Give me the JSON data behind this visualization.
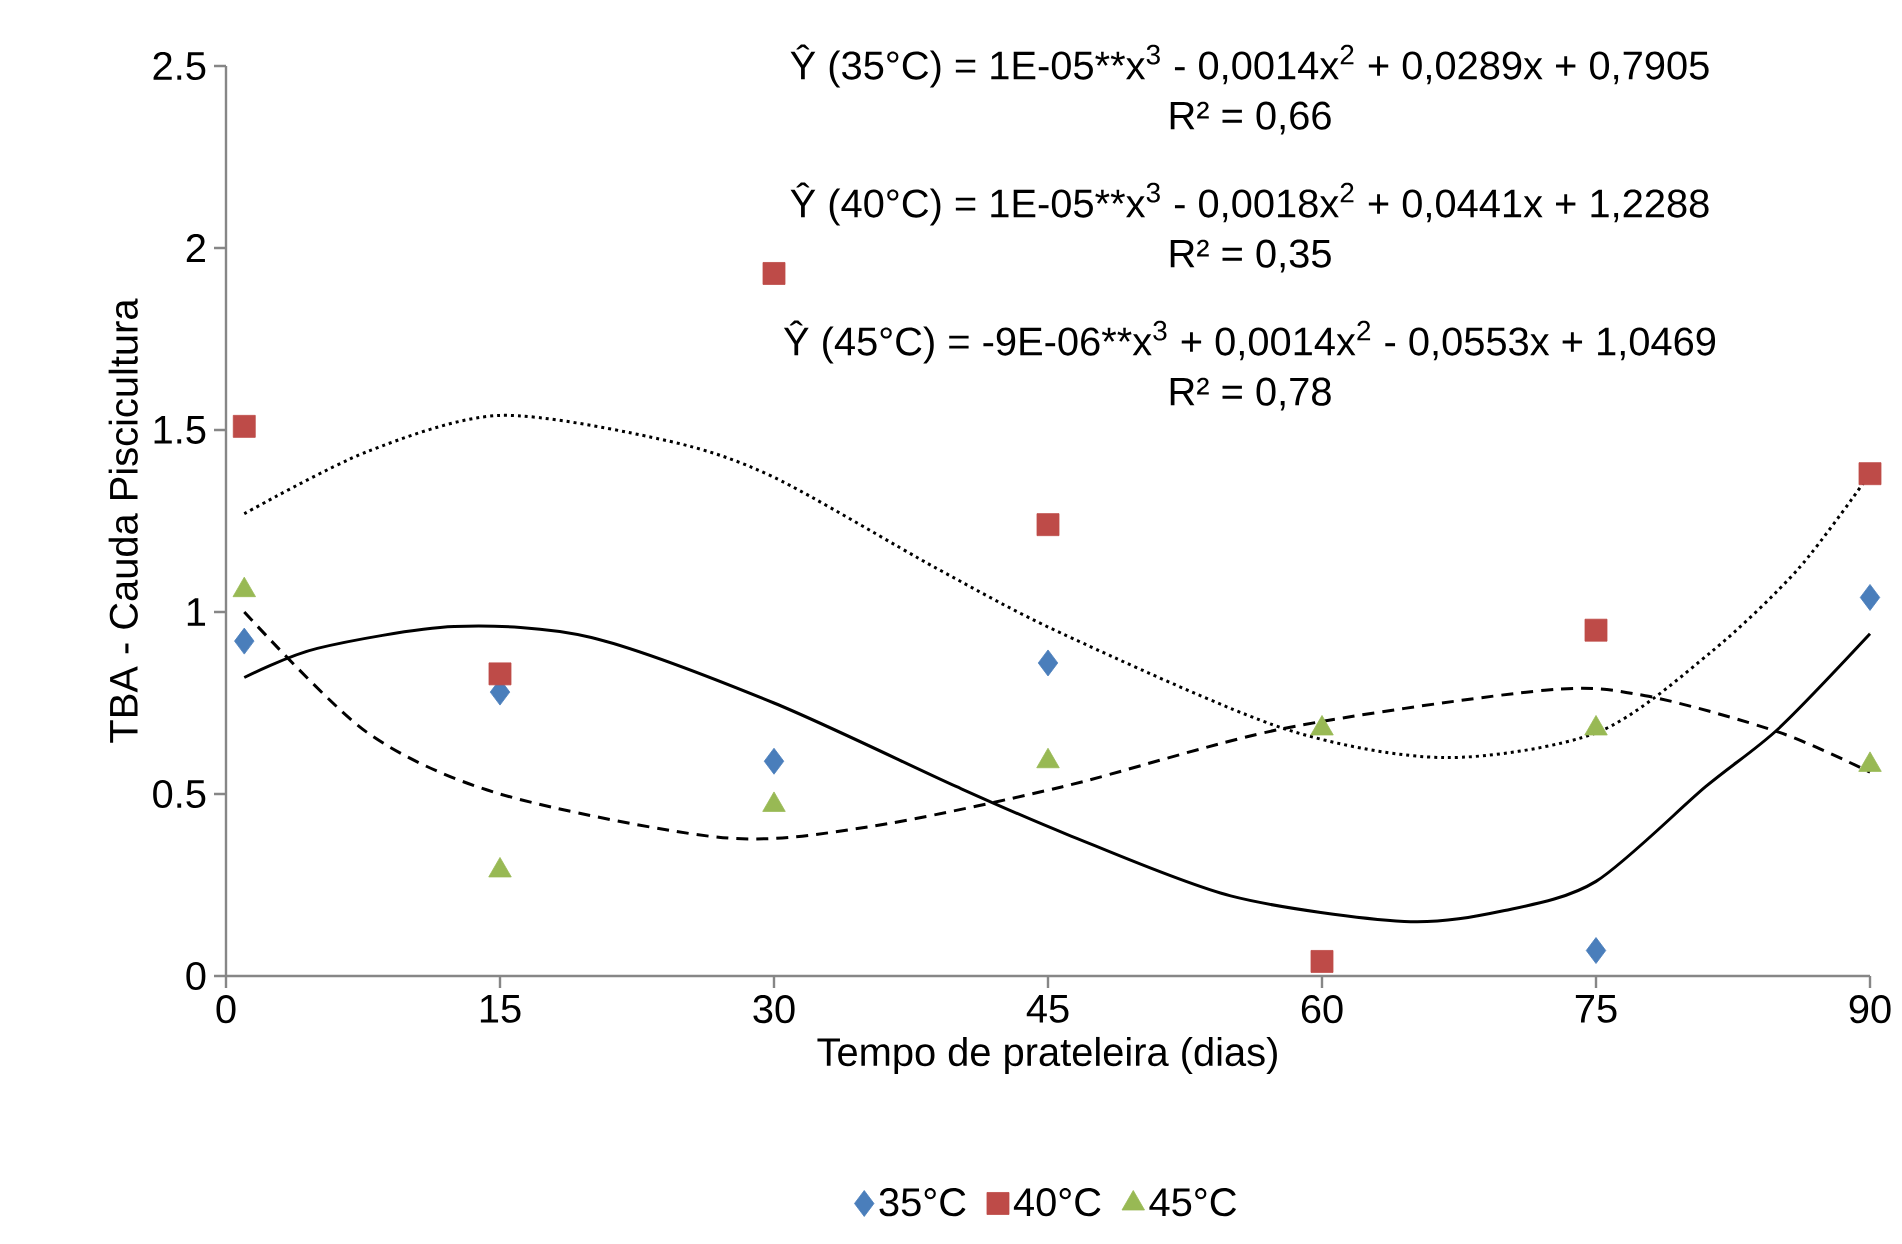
{
  "chart_data": {
    "type": "scatter",
    "xlabel": "Tempo de prateleira (dias)",
    "ylabel": "TBA - Cauda Piscicultura",
    "xlim": [
      0,
      90
    ],
    "xticks": [
      0,
      15,
      30,
      45,
      60,
      75,
      90
    ],
    "ylim": [
      0,
      2.5
    ],
    "yticks": [
      0,
      0.5,
      1,
      1.5,
      2,
      2.5
    ],
    "legend": "bottom",
    "annotations": [
      "Ŷ (35°C) = 1E-05**x$^{3}$ - 0,0014x$^{2}$ + 0,0289x + 0,7905",
      "R² = 0,66",
      "Ŷ (40°C) = 1E-05**x$^{3}$ - 0,0018x$^{2}$ + 0,0441x + 1,2288",
      "R² = 0,35",
      "Ŷ (45°C) = -9E-06**x$^{3}$ + 0,0014x$^{2}$ - 0,0553x + 1,0469",
      "R² = 0,78"
    ],
    "series": [
      {
        "name": "35°C",
        "marker": "diamond",
        "color": "#4a7ebb",
        "x": [
          1,
          15,
          30,
          45,
          60,
          75,
          90
        ],
        "values": [
          0.92,
          0.78,
          0.59,
          0.86,
          null,
          0.07,
          1.04
        ]
      },
      {
        "name": "40°C",
        "marker": "square",
        "color": "#be4b48",
        "x": [
          1,
          15,
          30,
          45,
          60,
          75,
          90
        ],
        "values": [
          1.51,
          0.83,
          1.93,
          1.24,
          0.04,
          0.95,
          1.38
        ]
      },
      {
        "name": "45°C",
        "marker": "triangle",
        "color": "#98b954",
        "x": [
          1,
          15,
          30,
          45,
          60,
          75,
          90
        ],
        "values": [
          1.06,
          0.29,
          0.47,
          0.59,
          0.68,
          0.68,
          0.58
        ]
      },
      {
        "type": "line",
        "line_style": "solid",
        "color": "#000000",
        "x": [
          1,
          5,
          12.5,
          20,
          30,
          40,
          46,
          55,
          64.5,
          70,
          75,
          81,
          85,
          90
        ],
        "values": [
          0.82,
          0.9,
          0.96,
          0.93,
          0.75,
          0.52,
          0.39,
          0.22,
          0.15,
          0.18,
          0.26,
          0.52,
          0.68,
          0.94
        ]
      },
      {
        "type": "line",
        "line_style": "dotted",
        "color": "#000000",
        "x": [
          1,
          7.7,
          15,
          24.2,
          30,
          38.9,
          45.8,
          57.9,
          66.7,
          75.1,
          81.3,
          86.1,
          90
        ],
        "values": [
          1.27,
          1.44,
          1.54,
          1.47,
          1.37,
          1.12,
          0.94,
          0.68,
          0.6,
          0.67,
          0.89,
          1.12,
          1.38
        ]
      },
      {
        "type": "line",
        "line_style": "dashed",
        "color": "#000000",
        "x": [
          1,
          7.7,
          15,
          27.2,
          35.2,
          45.8,
          57.9,
          72.2,
          77.7,
          85,
          90
        ],
        "values": [
          1.0,
          0.67,
          0.5,
          0.38,
          0.41,
          0.52,
          0.68,
          0.785,
          0.77,
          0.67,
          0.56
        ]
      }
    ]
  }
}
